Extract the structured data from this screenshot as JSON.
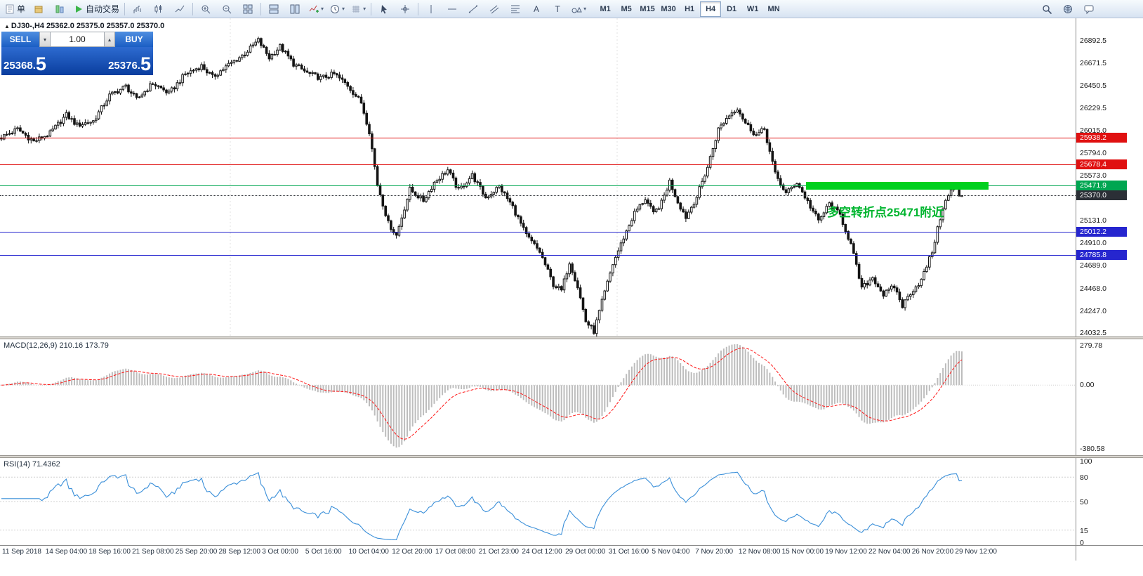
{
  "toolbar": {
    "dd_glyph": "▾",
    "left_buttons": [
      {
        "name": "new-order-button",
        "icon": "doc",
        "label": "单"
      },
      {
        "name": "toolbox-button",
        "icon": "pkg"
      },
      {
        "name": "market-watch-button",
        "icon": "market"
      },
      {
        "name": "autotrade-button",
        "icon": "play",
        "label": "自动交易"
      },
      {
        "sep": true
      },
      {
        "name": "bar-chart-button",
        "icon": "bars"
      },
      {
        "name": "candlestick-chart-button",
        "icon": "candles"
      },
      {
        "name": "line-chart-button",
        "icon": "line"
      },
      {
        "sep": true
      },
      {
        "name": "zoom-in-button",
        "icon": "zoomin"
      },
      {
        "name": "zoom-out-button",
        "icon": "zoomout"
      },
      {
        "name": "tile-windows-button",
        "icon": "tile"
      },
      {
        "sep": true
      },
      {
        "name": "tile-horizontal-button",
        "icon": "tileh"
      },
      {
        "name": "tile-vertical-button",
        "icon": "tilev"
      },
      {
        "name": "indicators-button",
        "icon": "indicator",
        "dd": true
      },
      {
        "name": "periods-button",
        "icon": "clock",
        "dd": true
      },
      {
        "name": "templates-button",
        "icon": "grid",
        "dd": true
      },
      {
        "sep": true
      },
      {
        "name": "cursor-button",
        "icon": "cursor"
      },
      {
        "name": "crosshair-button",
        "icon": "crosshair"
      },
      {
        "sep": true
      },
      {
        "name": "vertical-line-button",
        "icon": "vline"
      },
      {
        "name": "horizontal-line-button",
        "icon": "hline"
      },
      {
        "name": "trendline-button",
        "icon": "trend"
      },
      {
        "name": "channel-button",
        "icon": "channel"
      },
      {
        "name": "fibonacci-button",
        "icon": "fibo"
      },
      {
        "name": "text-button",
        "icon": "text"
      },
      {
        "name": "text-label-button",
        "icon": "label"
      },
      {
        "name": "arrows-button",
        "icon": "shapes",
        "dd": true
      }
    ],
    "timeframes": [
      {
        "label": "M1"
      },
      {
        "label": "M5"
      },
      {
        "label": "M15"
      },
      {
        "label": "M30"
      },
      {
        "label": "H1"
      },
      {
        "label": "H4",
        "active": true
      },
      {
        "label": "D1"
      },
      {
        "label": "W1"
      },
      {
        "label": "MN"
      }
    ],
    "right_buttons": [
      {
        "name": "search-button",
        "icon": "search"
      },
      {
        "name": "community-button",
        "icon": "globe"
      },
      {
        "name": "chat-button",
        "icon": "chat"
      }
    ]
  },
  "chart": {
    "info_arrow": "▲",
    "info": "DJ30-,H4 25362.0 25375.0 25357.0 25370.0",
    "price_axis_labels": [
      "26892.5",
      "26671.5",
      "26450.5",
      "26229.5",
      "26015.0",
      "25794.0",
      "25573.0",
      "25131.0",
      "24910.0",
      "24689.0",
      "24468.0",
      "24247.0",
      "24032.5"
    ],
    "date_labels": [
      "11 Sep 2018",
      "14 Sep 04:00",
      "18 Sep 16:00",
      "21 Sep 08:00",
      "25 Sep 20:00",
      "28 Sep 12:00",
      "3 Oct 00:00",
      "5 Oct 16:00",
      "10 Oct 04:00",
      "12 Oct 20:00",
      "17 Oct 08:00",
      "21 Oct 23:00",
      "24 Oct 12:00",
      "29 Oct 00:00",
      "31 Oct 16:00",
      "5 Nov 04:00",
      "7 Nov 20:00",
      "12 Nov 08:00",
      "15 Nov 00:00",
      "19 Nov 12:00",
      "22 Nov 04:00",
      "26 Nov 20:00",
      "29 Nov 12:00"
    ],
    "levels": [
      {
        "label": "25938.2",
        "price": 25938.2,
        "color": "#e01010",
        "style": "solid"
      },
      {
        "label": "25678.4",
        "price": 25678.4,
        "color": "#e01010",
        "style": "solid"
      },
      {
        "label": "25471.9",
        "price": 25471.9,
        "color": "#00a651",
        "style": "solid"
      },
      {
        "label": "25370.0",
        "price": 25370.0,
        "color": "#2b2f36",
        "style": "dotted"
      },
      {
        "label": "25012.2",
        "price": 25012.2,
        "color": "#2626cf",
        "style": "solid"
      },
      {
        "label": "24785.8",
        "price": 24785.8,
        "color": "#2626cf",
        "style": "solid"
      }
    ],
    "annotation": {
      "text": "多空转折点25471附近",
      "color": "#00b52f"
    },
    "highlight_band": {
      "price": 25471.9,
      "color": "#00d01e"
    }
  },
  "trade_panel": {
    "sell_label": "SELL",
    "buy_label": "BUY",
    "lot": "1.00",
    "lot_down_icon": "▾",
    "lot_up_icon": "▴",
    "sell_price": "25368.",
    "sell_price_big": "5",
    "buy_price": "25376.",
    "buy_price_big": "5"
  },
  "macd": {
    "title": "MACD(12,26,9)",
    "values": "210.16 173.79",
    "axis_labels": [
      "279.78",
      "0.00",
      "-380.58"
    ]
  },
  "rsi": {
    "title": "RSI(14)",
    "value": "71.4362",
    "axis_labels": [
      "100",
      "80",
      "50",
      "15",
      "0"
    ]
  },
  "chart_data": {
    "type": "candlestick",
    "symbol": "DJ30-",
    "timeframe": "H4",
    "ohlc_last": {
      "open": 25362.0,
      "high": 25375.0,
      "low": 25357.0,
      "close": 25370.0
    },
    "price_range": [
      23991,
      27106
    ],
    "n_candles": 356,
    "noise": 26,
    "trend_keypoints": [
      [
        0,
        25940
      ],
      [
        6,
        26020
      ],
      [
        12,
        25900
      ],
      [
        18,
        25980
      ],
      [
        24,
        26160
      ],
      [
        28,
        26060
      ],
      [
        34,
        26100
      ],
      [
        40,
        26350
      ],
      [
        46,
        26440
      ],
      [
        50,
        26310
      ],
      [
        56,
        26470
      ],
      [
        62,
        26370
      ],
      [
        68,
        26560
      ],
      [
        74,
        26640
      ],
      [
        78,
        26530
      ],
      [
        84,
        26650
      ],
      [
        90,
        26760
      ],
      [
        95,
        26890
      ],
      [
        99,
        26720
      ],
      [
        103,
        26830
      ],
      [
        108,
        26660
      ],
      [
        113,
        26570
      ],
      [
        118,
        26520
      ],
      [
        123,
        26560
      ],
      [
        128,
        26450
      ],
      [
        133,
        26280
      ],
      [
        136,
        26000
      ],
      [
        139,
        25480
      ],
      [
        143,
        25100
      ],
      [
        146,
        24980
      ],
      [
        151,
        25430
      ],
      [
        156,
        25320
      ],
      [
        160,
        25500
      ],
      [
        165,
        25620
      ],
      [
        169,
        25420
      ],
      [
        174,
        25570
      ],
      [
        179,
        25350
      ],
      [
        184,
        25460
      ],
      [
        189,
        25260
      ],
      [
        194,
        24980
      ],
      [
        199,
        24820
      ],
      [
        204,
        24500
      ],
      [
        207,
        24440
      ],
      [
        210,
        24720
      ],
      [
        213,
        24480
      ],
      [
        216,
        24140
      ],
      [
        219,
        24040
      ],
      [
        222,
        24330
      ],
      [
        226,
        24700
      ],
      [
        230,
        24960
      ],
      [
        234,
        25200
      ],
      [
        238,
        25340
      ],
      [
        241,
        25190
      ],
      [
        244,
        25300
      ],
      [
        247,
        25510
      ],
      [
        250,
        25310
      ],
      [
        253,
        25160
      ],
      [
        257,
        25360
      ],
      [
        261,
        25650
      ],
      [
        265,
        26020
      ],
      [
        269,
        26160
      ],
      [
        272,
        26230
      ],
      [
        275,
        26080
      ],
      [
        279,
        25960
      ],
      [
        282,
        26020
      ],
      [
        286,
        25580
      ],
      [
        290,
        25390
      ],
      [
        294,
        25500
      ],
      [
        298,
        25310
      ],
      [
        302,
        25120
      ],
      [
        306,
        25290
      ],
      [
        310,
        25180
      ],
      [
        314,
        24890
      ],
      [
        318,
        24460
      ],
      [
        322,
        24570
      ],
      [
        326,
        24400
      ],
      [
        330,
        24480
      ],
      [
        333,
        24290
      ],
      [
        336,
        24420
      ],
      [
        340,
        24540
      ],
      [
        344,
        24820
      ],
      [
        348,
        25260
      ],
      [
        352,
        25470
      ],
      [
        355,
        25370
      ]
    ],
    "indicators": [
      {
        "name": "MACD",
        "params": [
          12,
          26,
          9
        ],
        "display_values": [
          210.16,
          173.79
        ],
        "axis": [
          279.78,
          0.0,
          -380.58
        ]
      },
      {
        "name": "RSI",
        "params": [
          14
        ],
        "display_value": 71.4362,
        "axis": [
          100,
          80,
          50,
          15,
          0
        ]
      }
    ],
    "colors": {
      "bull": "#ffffff",
      "bear": "#141414",
      "wick": "#141414",
      "macd_hist": "#bdbdbd",
      "macd_signal": "#ff1414",
      "rsi_line": "#3a8fd9",
      "grid": "#e2e2e2"
    }
  }
}
